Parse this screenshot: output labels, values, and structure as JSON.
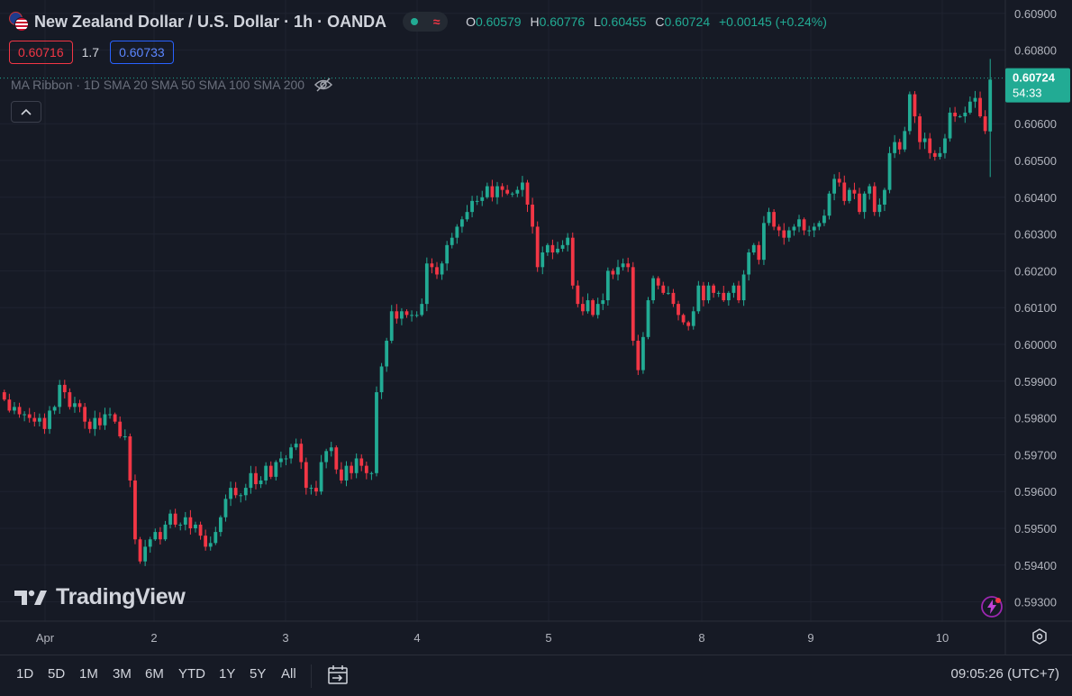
{
  "header": {
    "symbol_title": "New Zealand Dollar / U.S. Dollar · 1h · OANDA",
    "ohlc": {
      "o_label": "O",
      "o": "0.60579",
      "h_label": "H",
      "h": "0.60776",
      "l_label": "L",
      "l": "0.60455",
      "c_label": "C",
      "c": "0.60724",
      "change": "+0.00145 (+0.24%)"
    },
    "status_icons": [
      "market-open-dot-icon",
      "wave-icon"
    ]
  },
  "trade": {
    "sell": "0.60716",
    "spread": "1.7",
    "buy": "0.60733"
  },
  "indicator": {
    "label": "MA Ribbon · 1D SMA 20 SMA 50 SMA 100 SMA 200",
    "icon": "eye-crossed-icon"
  },
  "logo": {
    "text": "TradingView"
  },
  "toolbar": {
    "timeframes": [
      "1D",
      "5D",
      "1M",
      "3M",
      "6M",
      "YTD",
      "1Y",
      "5Y",
      "All"
    ],
    "clock": "09:05:26 (UTC+7)"
  },
  "colors": {
    "up": "#22ab94",
    "down": "#f23645",
    "background": "#161a25",
    "grid": "#1f2330",
    "accent": "#2962ff"
  },
  "chart_data": {
    "type": "candlestick",
    "interval": "1h",
    "ylim": [
      0.5925,
      0.6092
    ],
    "y_ticks": [
      "0.60900",
      "0.60800",
      "0.60600",
      "0.60500",
      "0.60400",
      "0.60300",
      "0.60200",
      "0.60100",
      "0.60000",
      "0.59900",
      "0.59800",
      "0.59700",
      "0.59600",
      "0.59500",
      "0.59400",
      "0.59300"
    ],
    "x_ticks": [
      "Apr",
      "2",
      "3",
      "4",
      "5",
      "8",
      "9",
      "10"
    ],
    "last_price": "0.60724",
    "countdown": "54:33",
    "closes": [
      0.5985,
      0.5982,
      0.5983,
      0.5981,
      0.5981,
      0.598,
      0.5979,
      0.598,
      0.5977,
      0.5982,
      0.5983,
      0.5989,
      0.5987,
      0.5983,
      0.5984,
      0.5983,
      0.5979,
      0.5977,
      0.598,
      0.5978,
      0.5981,
      0.5981,
      0.5979,
      0.5975,
      0.5975,
      0.5963,
      0.5947,
      0.5941,
      0.5945,
      0.5947,
      0.5949,
      0.5947,
      0.5951,
      0.5954,
      0.5951,
      0.5951,
      0.5953,
      0.595,
      0.5951,
      0.5948,
      0.5945,
      0.5946,
      0.5949,
      0.5953,
      0.5958,
      0.5961,
      0.5959,
      0.5959,
      0.5961,
      0.5965,
      0.5962,
      0.5963,
      0.5967,
      0.5964,
      0.5968,
      0.5969,
      0.5969,
      0.5972,
      0.5973,
      0.5968,
      0.5961,
      0.5961,
      0.596,
      0.5968,
      0.5971,
      0.5972,
      0.5966,
      0.5963,
      0.5967,
      0.5965,
      0.5969,
      0.5967,
      0.5965,
      0.5965,
      0.5987,
      0.5994,
      0.6001,
      0.6009,
      0.6007,
      0.6009,
      0.6008,
      0.6008,
      0.6008,
      0.6011,
      0.6022,
      0.6021,
      0.6019,
      0.6022,
      0.6027,
      0.6029,
      0.6032,
      0.6034,
      0.6036,
      0.6039,
      0.6039,
      0.604,
      0.6043,
      0.604,
      0.6043,
      0.6042,
      0.6041,
      0.6041,
      0.6042,
      0.6044,
      0.6038,
      0.6032,
      0.6021,
      0.6025,
      0.6027,
      0.6025,
      0.6026,
      0.6027,
      0.6029,
      0.6016,
      0.6011,
      0.6009,
      0.6012,
      0.6008,
      0.6011,
      0.6012,
      0.602,
      0.6019,
      0.6021,
      0.6022,
      0.6021,
      0.6001,
      0.5993,
      0.6002,
      0.6012,
      0.6018,
      0.6016,
      0.6014,
      0.6014,
      0.6011,
      0.6008,
      0.6006,
      0.6005,
      0.6009,
      0.6016,
      0.6012,
      0.6016,
      0.6014,
      0.6014,
      0.6012,
      0.6014,
      0.6016,
      0.6012,
      0.6019,
      0.6025,
      0.6027,
      0.6023,
      0.6033,
      0.6036,
      0.6032,
      0.6031,
      0.6029,
      0.6031,
      0.6032,
      0.6034,
      0.6031,
      0.6031,
      0.6032,
      0.6033,
      0.6035,
      0.6041,
      0.6045,
      0.6044,
      0.6039,
      0.6042,
      0.6041,
      0.6036,
      0.6041,
      0.6043,
      0.6036,
      0.6038,
      0.6042,
      0.6052,
      0.6055,
      0.6053,
      0.6058,
      0.6068,
      0.6062,
      0.6055,
      0.6056,
      0.6052,
      0.6051,
      0.6052,
      0.6056,
      0.6063,
      0.6062,
      0.6062,
      0.6063,
      0.6066,
      0.6067,
      0.6062,
      0.6058,
      0.6072
    ]
  }
}
